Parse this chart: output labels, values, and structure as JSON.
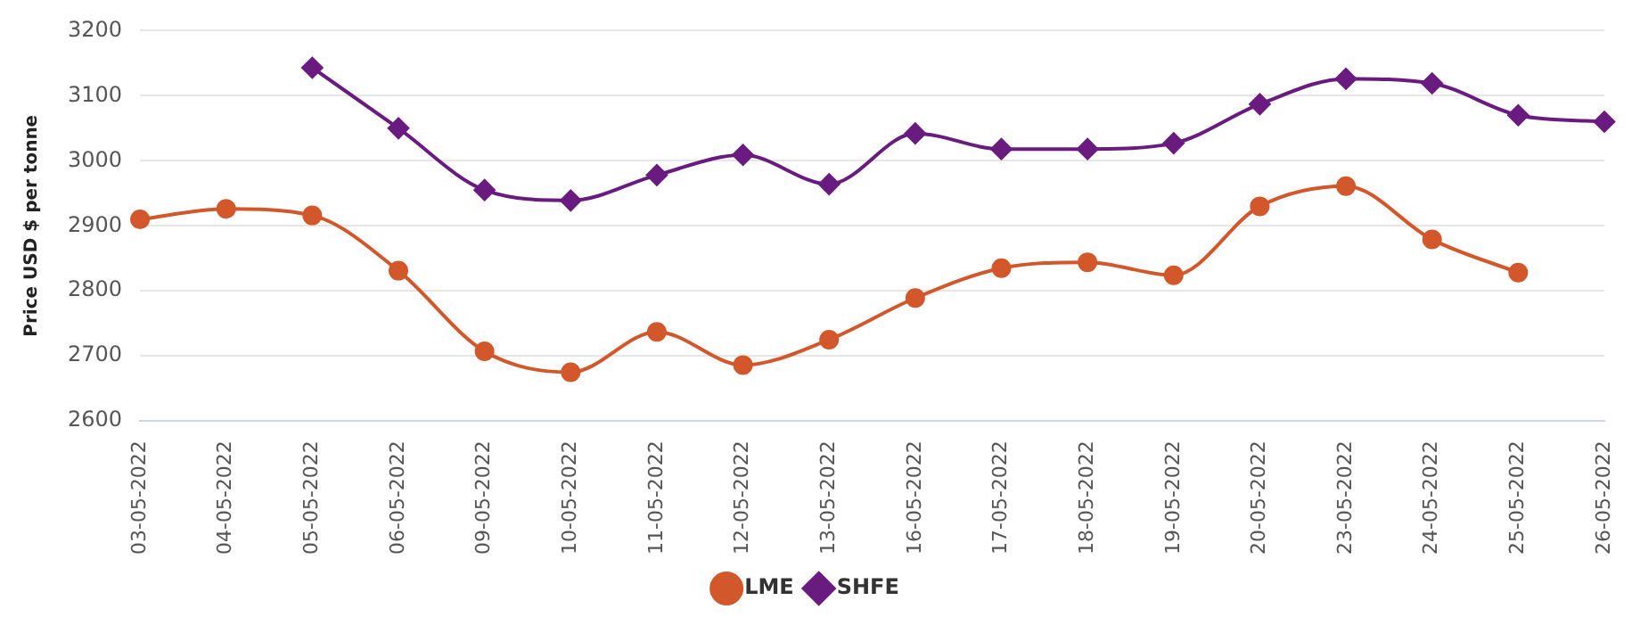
{
  "chart_data": {
    "type": "line",
    "ylabel": "Price USD $ per tonne",
    "categories": [
      "03-05-2022",
      "04-05-2022",
      "05-05-2022",
      "06-05-2022",
      "09-05-2022",
      "10-05-2022",
      "11-05-2022",
      "12-05-2022",
      "13-05-2022",
      "16-05-2022",
      "17-05-2022",
      "18-05-2022",
      "19-05-2022",
      "20-05-2022",
      "23-05-2022",
      "24-05-2022",
      "25-05-2022",
      "26-05-2022"
    ],
    "series": [
      {
        "name": "LME",
        "color": "#d2572a",
        "marker": "circle",
        "values": [
          2910,
          2926,
          2916,
          2831,
          2707,
          2675,
          2737,
          2686,
          2725,
          2789,
          2835,
          2844,
          2824,
          2930,
          2961,
          2879,
          2828,
          null
        ]
      },
      {
        "name": "SHFE",
        "color": "#6a1b7f",
        "marker": "diamond",
        "values": [
          null,
          null,
          3143,
          3050,
          2955,
          2939,
          2978,
          3009,
          2964,
          3042,
          3018,
          3018,
          3027,
          3087,
          3126,
          3119,
          3070,
          3060
        ]
      }
    ],
    "ylim": [
      2600,
      3200
    ],
    "yticks": [
      2600,
      2700,
      2800,
      2900,
      3000,
      3100,
      3200
    ],
    "grid": "y",
    "legend": "bottom"
  }
}
